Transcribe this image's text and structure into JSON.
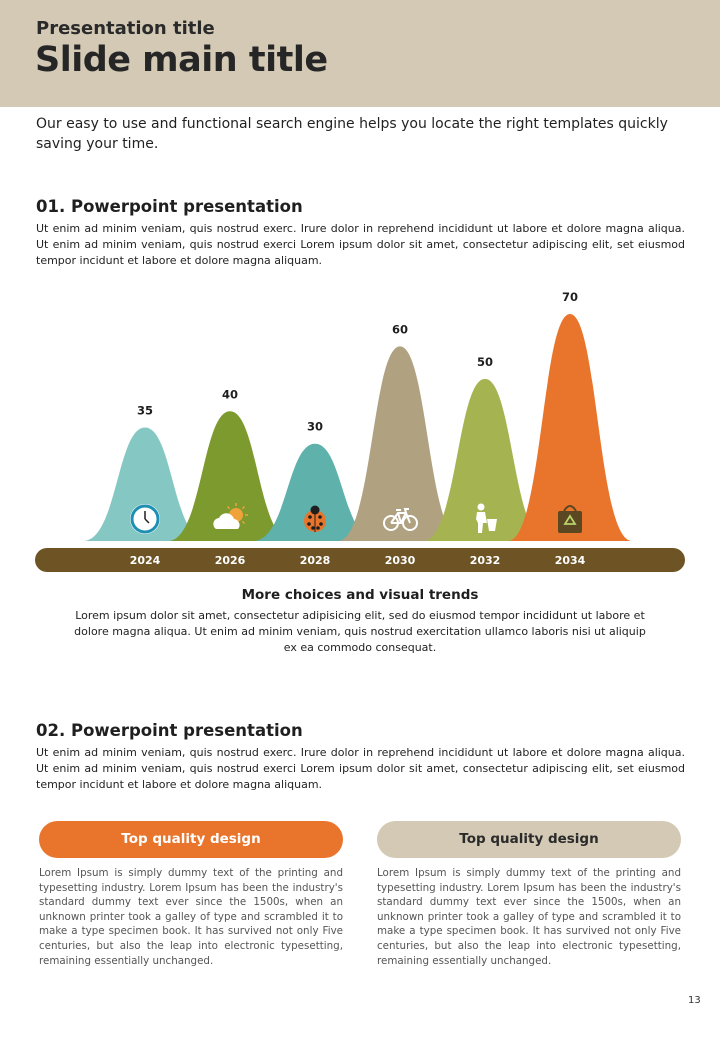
{
  "header": {
    "presentation_title": "Presentation title",
    "main_title": "Slide main title"
  },
  "intro": "Our easy to use and functional search engine helps you locate the right templates quickly saving your time.",
  "section1": {
    "title": "01. Powerpoint presentation",
    "body": "Ut enim ad minim veniam, quis nostrud exerc. Irure dolor in reprehend incididunt ut labore et dolore magna aliqua. Ut enim ad minim veniam, quis nostrud exerci  Lorem ipsum dolor sit amet, consectetur adipiscing elit, set eiusmod tempor incidunt et labore et dolore magna aliquam."
  },
  "chart_data": {
    "type": "area",
    "categories": [
      "2024",
      "2026",
      "2028",
      "2030",
      "2032",
      "2034"
    ],
    "values": [
      35,
      40,
      30,
      60,
      50,
      70
    ],
    "colors": [
      "#85c7c2",
      "#7d9a2f",
      "#5fb1ab",
      "#b0a281",
      "#a5b451",
      "#e9742b"
    ],
    "icons": [
      "clock-icon",
      "weather-icon",
      "ladybug-icon",
      "bicycle-icon",
      "recycle-person-icon",
      "eco-bag-icon"
    ],
    "axis_color": "#6e5425",
    "ylim": [
      0,
      70
    ]
  },
  "chart_caption": {
    "title": "More choices and visual trends",
    "body": "Lorem ipsum dolor sit amet, consectetur adipisicing elit, sed do eiusmod tempor incididunt ut labore et dolore magna aliqua. Ut enim ad minim veniam, quis nostrud exercitation ullamco laboris nisi ut aliquip ex ea commodo consequat."
  },
  "section2": {
    "title": "02. Powerpoint presentation",
    "body": "Ut enim ad minim veniam, quis nostrud exerc. Irure dolor in reprehend incididunt ut labore et dolore magna aliqua. Ut enim ad minim veniam, quis nostrud exerci  Lorem ipsum dolor sit amet, consectetur adipiscing elit, set eiusmod tempor incidunt et labore et dolore magna aliquam."
  },
  "columns": [
    {
      "heading": "Top quality design",
      "body": "Lorem Ipsum is simply dummy text of the printing and typesetting industry. Lorem Ipsum has been the industry's standard dummy text ever since the 1500s, when an unknown printer took a galley of type and scrambled it to make a type specimen book. It has survived not only Five centuries, but also the leap into electronic typesetting, remaining essentially unchanged."
    },
    {
      "heading": "Top quality design",
      "body": "Lorem Ipsum is simply dummy text of the printing and typesetting industry. Lorem Ipsum has been the industry's standard dummy text ever since the 1500s, when an unknown printer took a galley of type and scrambled it to make a type specimen book. It has survived not only Five centuries, but also the leap into electronic typesetting, remaining essentially unchanged."
    }
  ],
  "page_number": "13"
}
